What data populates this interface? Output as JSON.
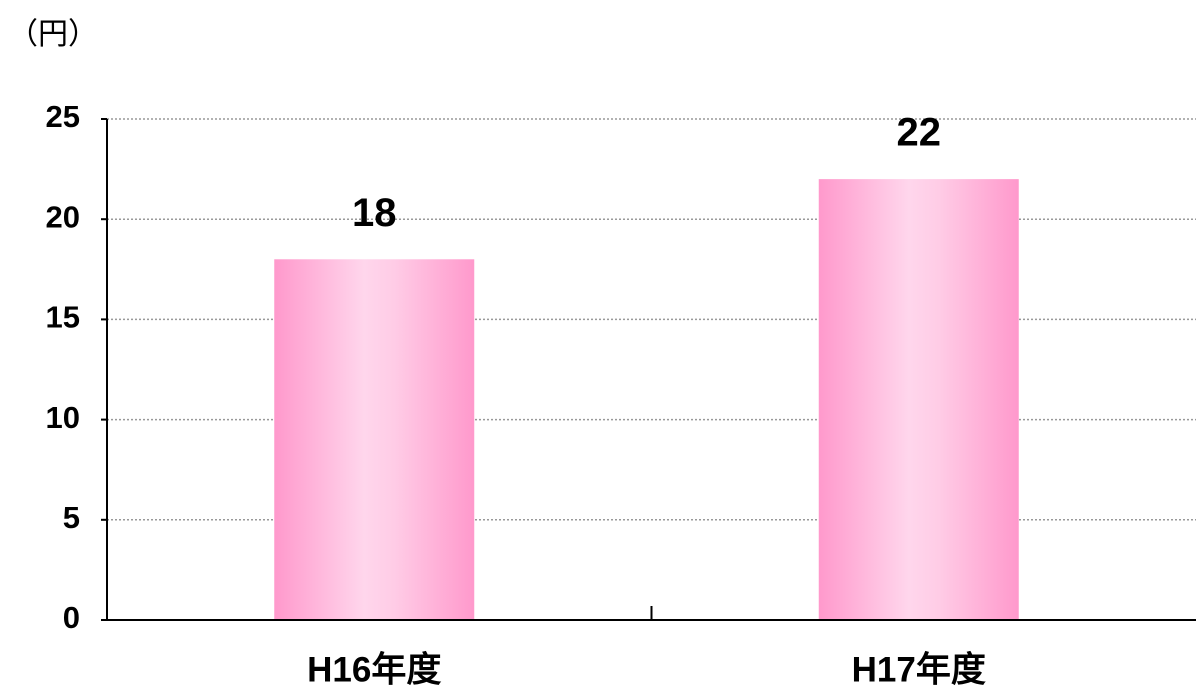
{
  "chart_data": {
    "type": "bar",
    "y_label": "（円）",
    "categories": [
      "H16年度",
      "H17年度"
    ],
    "values": [
      18,
      22
    ],
    "color": "#ff99cc",
    "ylim": [
      0,
      25
    ],
    "yticks": [
      0,
      5,
      10,
      15,
      20,
      25
    ],
    "grid": true
  }
}
